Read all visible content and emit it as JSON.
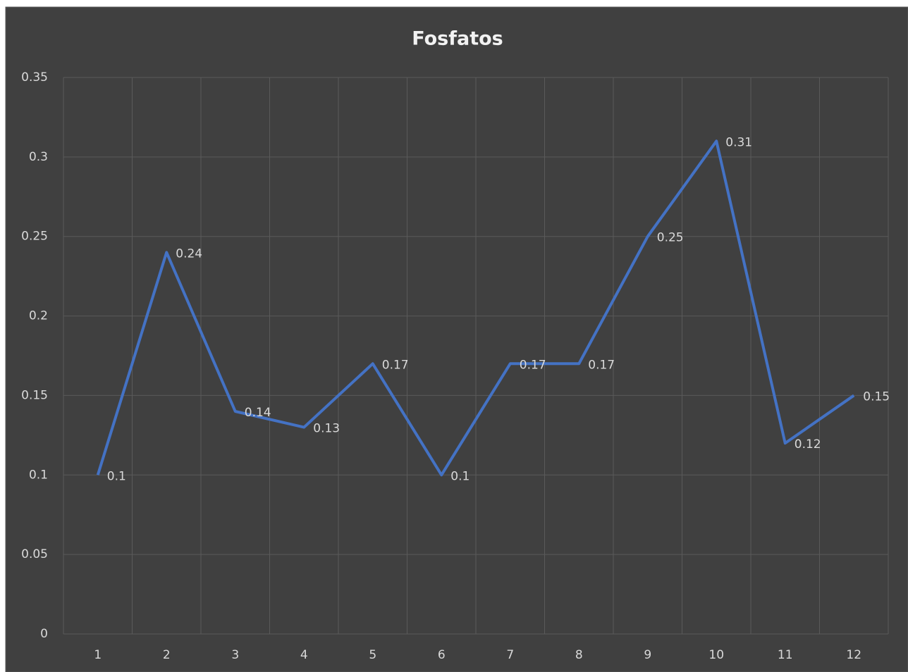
{
  "chart_data": {
    "type": "line",
    "title": "Fosfatos",
    "categories": [
      "1",
      "2",
      "3",
      "4",
      "5",
      "6",
      "7",
      "8",
      "9",
      "10",
      "11",
      "12"
    ],
    "values": [
      0.1,
      0.24,
      0.14,
      0.13,
      0.17,
      0.1,
      0.17,
      0.17,
      0.25,
      0.31,
      0.12,
      0.15
    ],
    "color": "#4472c4",
    "ylim": [
      0,
      0.35
    ],
    "yticks": [
      0,
      0.05,
      0.1,
      0.15,
      0.2,
      0.25,
      0.3,
      0.35
    ],
    "grid": true
  }
}
